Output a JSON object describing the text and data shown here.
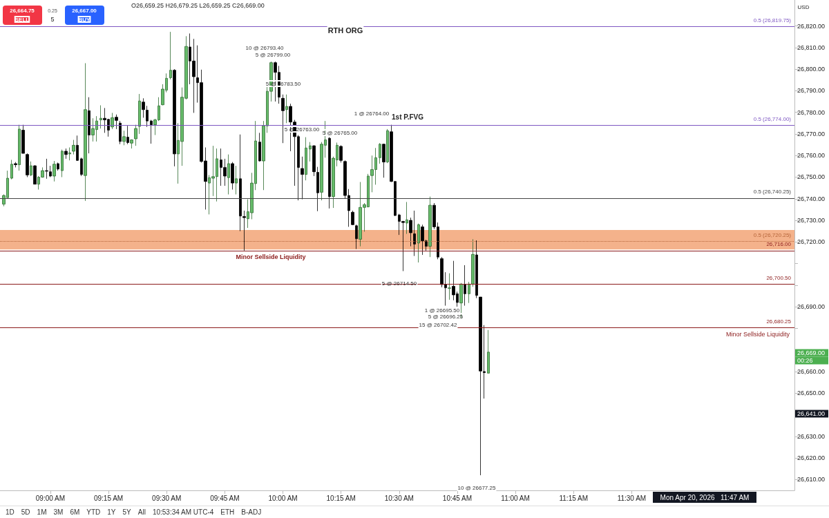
{
  "chart_data": {
    "type": "candlestick",
    "subtitle": "O26,659.25 H26,679.25 L26,659.25 C26,669.00",
    "x": [
      "2026-04-20T08:48",
      "2026-04-20T08:49",
      "2026-04-20T08:50",
      "2026-04-20T08:51",
      "2026-04-20T08:52",
      "2026-04-20T08:53",
      "2026-04-20T08:54",
      "2026-04-20T08:55",
      "2026-04-20T08:56",
      "2026-04-20T08:57",
      "2026-04-20T08:58",
      "2026-04-20T08:59",
      "2026-04-20T09:00",
      "2026-04-20T09:01",
      "2026-04-20T09:02",
      "2026-04-20T09:03",
      "2026-04-20T09:04",
      "2026-04-20T09:05",
      "2026-04-20T09:06",
      "2026-04-20T09:07",
      "2026-04-20T09:08",
      "2026-04-20T09:09",
      "2026-04-20T09:10",
      "2026-04-20T09:11",
      "2026-04-20T09:12",
      "2026-04-20T09:13",
      "2026-04-20T09:14",
      "2026-04-20T09:15",
      "2026-04-20T09:16",
      "2026-04-20T09:17",
      "2026-04-20T09:18",
      "2026-04-20T09:19",
      "2026-04-20T09:20",
      "2026-04-20T09:21",
      "2026-04-20T09:22",
      "2026-04-20T09:23",
      "2026-04-20T09:24",
      "2026-04-20T09:25",
      "2026-04-20T09:26",
      "2026-04-20T09:27",
      "2026-04-20T09:28",
      "2026-04-20T09:29",
      "2026-04-20T09:30",
      "2026-04-20T09:31",
      "2026-04-20T09:32",
      "2026-04-20T09:33",
      "2026-04-20T09:34",
      "2026-04-20T09:35",
      "2026-04-20T09:36",
      "2026-04-20T09:37",
      "2026-04-20T09:38",
      "2026-04-20T09:39",
      "2026-04-20T09:40",
      "2026-04-20T09:41",
      "2026-04-20T09:42",
      "2026-04-20T09:43",
      "2026-04-20T09:44",
      "2026-04-20T09:45",
      "2026-04-20T09:46",
      "2026-04-20T09:47",
      "2026-04-20T09:48",
      "2026-04-20T09:49",
      "2026-04-20T09:50",
      "2026-04-20T09:51",
      "2026-04-20T09:52",
      "2026-04-20T09:53",
      "2026-04-20T09:54",
      "2026-04-20T09:55",
      "2026-04-20T09:56",
      "2026-04-20T09:57",
      "2026-04-20T09:58",
      "2026-04-20T09:59",
      "2026-04-20T10:00",
      "2026-04-20T10:01",
      "2026-04-20T10:02",
      "2026-04-20T10:03",
      "2026-04-20T10:04",
      "2026-04-20T10:05",
      "2026-04-20T10:06",
      "2026-04-20T10:07",
      "2026-04-20T10:08",
      "2026-04-20T10:09",
      "2026-04-20T10:10",
      "2026-04-20T10:11",
      "2026-04-20T10:12",
      "2026-04-20T10:13",
      "2026-04-20T10:14",
      "2026-04-20T10:15",
      "2026-04-20T10:16",
      "2026-04-20T10:17",
      "2026-04-20T10:18",
      "2026-04-20T10:19",
      "2026-04-20T10:20",
      "2026-04-20T10:21",
      "2026-04-20T10:22",
      "2026-04-20T10:23",
      "2026-04-20T10:24",
      "2026-04-20T10:25",
      "2026-04-20T10:26",
      "2026-04-20T10:27",
      "2026-04-20T10:28",
      "2026-04-20T10:29",
      "2026-04-20T10:30",
      "2026-04-20T10:31",
      "2026-04-20T10:32",
      "2026-04-20T10:33",
      "2026-04-20T10:34",
      "2026-04-20T10:35",
      "2026-04-20T10:36",
      "2026-04-20T10:37",
      "2026-04-20T10:38",
      "2026-04-20T10:39",
      "2026-04-20T10:40",
      "2026-04-20T10:41",
      "2026-04-20T10:42",
      "2026-04-20T10:43",
      "2026-04-20T10:44",
      "2026-04-20T10:45",
      "2026-04-20T10:46",
      "2026-04-20T10:47",
      "2026-04-20T10:48",
      "2026-04-20T10:49",
      "2026-04-20T10:50",
      "2026-04-20T10:51",
      "2026-04-20T10:52",
      "2026-04-20T10:53"
    ],
    "ohlc": [
      [
        26737.5,
        26742,
        26736.5,
        26741.5
      ],
      [
        26740.5,
        26753,
        26740.5,
        26749.5
      ],
      [
        26749.5,
        26758,
        26749,
        26756
      ],
      [
        26756.25,
        26757,
        26754.5,
        26755.75
      ],
      [
        26755.75,
        26774.25,
        26753,
        26772.25
      ],
      [
        26771.75,
        26774.25,
        26761,
        26761
      ],
      [
        26760.5,
        26761,
        26750,
        26751
      ],
      [
        26751,
        26757.25,
        26750.5,
        26755.25
      ],
      [
        26755.25,
        26755.5,
        26746.75,
        26746.75
      ],
      [
        26746.75,
        26750.5,
        26744.25,
        26750
      ],
      [
        26750,
        26754.5,
        26749.75,
        26753
      ],
      [
        26753,
        26758.5,
        26749.25,
        26752.75
      ],
      [
        26752.5,
        26755.25,
        26750,
        26750.5
      ],
      [
        26750.5,
        26757.5,
        26748,
        26756
      ],
      [
        26756.25,
        26756.75,
        26753,
        26753.75
      ],
      [
        26753,
        26762.75,
        26750,
        26762
      ],
      [
        26762,
        26763.25,
        26758.5,
        26760.5
      ],
      [
        26760.75,
        26763.75,
        26757.75,
        26761.25
      ],
      [
        26762,
        26767.25,
        26760.5,
        26764.75
      ],
      [
        26764.75,
        26769.25,
        26757.5,
        26757.75
      ],
      [
        26758.5,
        26759,
        26750.5,
        26751.25
      ],
      [
        26750.75,
        26802.75,
        26739,
        26781.25
      ],
      [
        26780.75,
        26787,
        26761,
        26769.5
      ],
      [
        26769.5,
        26777.25,
        26766.5,
        26772.5
      ],
      [
        26772,
        26778.25,
        26766.5,
        26776
      ],
      [
        26776.5,
        26783.25,
        26772.5,
        26777.25
      ],
      [
        26777.25,
        26782,
        26770.5,
        26776.5
      ],
      [
        26776.75,
        26777,
        26768.75,
        26771.75
      ],
      [
        26773.25,
        26779.75,
        26772.25,
        26777.5
      ],
      [
        26777.75,
        26779,
        26772.25,
        26776.25
      ],
      [
        26775,
        26776,
        26765.25,
        26766.5
      ],
      [
        26766.5,
        26771.5,
        26764.75,
        26768.75
      ],
      [
        26768.5,
        26773.75,
        26765.25,
        26766
      ],
      [
        26765.75,
        26767.5,
        26763.25,
        26767.25
      ],
      [
        26767.75,
        26774.25,
        26764.5,
        26772.5
      ],
      [
        26773.5,
        26788.5,
        26770,
        26785.25
      ],
      [
        26784.75,
        26786.5,
        26777.5,
        26781.25
      ],
      [
        26781,
        26783,
        26773.25,
        26776
      ],
      [
        26776,
        26776.5,
        26765.5,
        26774.25
      ],
      [
        26774.25,
        26777,
        26769.5,
        26776.5
      ],
      [
        26776.5,
        26787,
        26776,
        26783
      ],
      [
        26783.5,
        26793,
        26783.25,
        26790.75
      ],
      [
        26790.25,
        26798,
        26789.25,
        26795.75
      ],
      [
        26796,
        26817.25,
        26795.25,
        26799.5
      ],
      [
        26799.5,
        26800,
        26755,
        26760.75
      ],
      [
        26760.75,
        26775,
        26747,
        26767
      ],
      [
        26766.5,
        26791.5,
        26755.25,
        26787
      ],
      [
        26786.5,
        26815.25,
        26786,
        26810.5
      ],
      [
        26810.25,
        26816.5,
        26793,
        26803.75
      ],
      [
        26803.75,
        26814,
        26779.75,
        26796.5
      ],
      [
        26796,
        26811,
        26784.5,
        26793.75
      ],
      [
        26793.75,
        26799.75,
        26756.75,
        26757.25
      ],
      [
        26757.5,
        26763.75,
        26735,
        26748
      ],
      [
        26747.25,
        26751,
        26732.75,
        26749.75
      ],
      [
        26749.5,
        26764.5,
        26741.25,
        26750.25
      ],
      [
        26750.25,
        26763.25,
        26738.75,
        26758.5
      ],
      [
        26758,
        26763.25,
        26746,
        26754.5
      ],
      [
        26754.5,
        26758.5,
        26746,
        26750.5
      ],
      [
        26749.75,
        26760.5,
        26742,
        26756.25
      ],
      [
        26756.25,
        26757,
        26744.25,
        26747.25
      ],
      [
        26747.25,
        26755.25,
        26742,
        26749.25
      ],
      [
        26749.25,
        26769.75,
        26725,
        26732
      ],
      [
        26731.75,
        26734.5,
        26716,
        26731.25
      ],
      [
        26730.75,
        26739.75,
        26726.5,
        26734
      ],
      [
        26733.5,
        26752,
        26730.5,
        26747.25
      ],
      [
        26747,
        26776,
        26744,
        26766.75
      ],
      [
        26766.25,
        26770.5,
        26757.25,
        26757.5
      ],
      [
        26757.5,
        26776,
        26744,
        26773.75
      ],
      [
        26773.75,
        26792.5,
        26770.5,
        26789.75
      ],
      [
        26789.75,
        26803.5,
        26785,
        26803
      ],
      [
        26803,
        26803.5,
        26785,
        26798.5
      ],
      [
        26798.5,
        26801.5,
        26784,
        26787
      ],
      [
        26786.5,
        26788.25,
        26765.75,
        26780.75
      ],
      [
        26781.25,
        26788.25,
        26775,
        26782.75
      ],
      [
        26782.75,
        26784,
        26762,
        26775.5
      ],
      [
        26775.5,
        26776.5,
        26746,
        26768.75
      ],
      [
        26768.75,
        26769.5,
        26739.25,
        26754.5
      ],
      [
        26754,
        26759.5,
        26739.75,
        26751.25
      ],
      [
        26751.25,
        26768.5,
        26748.5,
        26763.5
      ],
      [
        26763,
        26766.25,
        26757.25,
        26764.5
      ],
      [
        26764.5,
        26764.75,
        26750.5,
        26752.5
      ],
      [
        26752.25,
        26754.75,
        26734.25,
        26742.75
      ],
      [
        26743,
        26766.25,
        26739.25,
        26765.25
      ],
      [
        26764.75,
        26776,
        26759,
        26767.25
      ],
      [
        26768,
        26768.5,
        26735.5,
        26741
      ],
      [
        26741,
        26759.5,
        26735.75,
        26758.75
      ],
      [
        26758,
        26766,
        26755,
        26764.75
      ],
      [
        26764.25,
        26764.75,
        26756.75,
        26757.75
      ],
      [
        26757.25,
        26757.75,
        26740,
        26741.5
      ],
      [
        26741.5,
        26744.5,
        26727,
        26734.5
      ],
      [
        26733.75,
        26734.5,
        26727.75,
        26728
      ],
      [
        26727.5,
        26728,
        26716.75,
        26721.5
      ],
      [
        26721.25,
        26747.75,
        26718,
        26736
      ],
      [
        26736,
        26738,
        26724.75,
        26737.25
      ],
      [
        26736.25,
        26751.5,
        26736,
        26750.5
      ],
      [
        26750.75,
        26760,
        26743,
        26753.5
      ],
      [
        26753.5,
        26763.5,
        26746.5,
        26759
      ],
      [
        26759,
        26765.75,
        26756.25,
        26765.25
      ],
      [
        26765.25,
        26765.5,
        26749.75,
        26757
      ],
      [
        26757,
        26772.25,
        26756.5,
        26771.5
      ],
      [
        26771,
        26774.25,
        26747.75,
        26748
      ],
      [
        26748,
        26748.25,
        26732,
        26732.25
      ],
      [
        26732.5,
        26733,
        26723.25,
        26729.5
      ],
      [
        26729.5,
        26729.75,
        26706.5,
        26729
      ],
      [
        26728.75,
        26738.5,
        26723.75,
        26730.25
      ],
      [
        26730,
        26731.25,
        26718,
        26724.25
      ],
      [
        26723.75,
        26734.5,
        26713.5,
        26719
      ],
      [
        26719.5,
        26728.5,
        26710.5,
        26728
      ],
      [
        26727,
        26728,
        26714,
        26720.5
      ],
      [
        26720.5,
        26721,
        26716,
        26718
      ],
      [
        26718,
        26741,
        26713,
        26737
      ],
      [
        26737,
        26738,
        26726,
        26727
      ],
      [
        26727,
        26729,
        26712,
        26713
      ],
      [
        26712.25,
        26713,
        26699,
        26700.25
      ],
      [
        26700.25,
        26706,
        26690.5,
        26698.75
      ],
      [
        26698.5,
        26705.5,
        26693.25,
        26698.75
      ],
      [
        26699.5,
        26711.25,
        26693,
        26695.5
      ],
      [
        26696,
        26697,
        26689.5,
        26692
      ],
      [
        26691.75,
        26701,
        26684.25,
        26700.5
      ],
      [
        26700.25,
        26709.25,
        26690.5,
        26696
      ],
      [
        26696,
        26701.5,
        26691.75,
        26700.5
      ],
      [
        26700.5,
        26721.25,
        26699.25,
        26714.25
      ],
      [
        26714,
        26720.75,
        26694,
        26695.25
      ],
      [
        26694.5,
        26694.5,
        26612,
        26660.25
      ],
      [
        26660,
        26681.5,
        26647.5,
        26659.5
      ],
      [
        26659.25,
        26679.25,
        26659.25,
        26669
      ]
    ],
    "colors": [
      "#66bb6a",
      "#66bb6a",
      "#66bb6a",
      "#000000",
      "#66bb6a",
      "#000000",
      "#000000",
      "#66bb6a",
      "#000000",
      "#66bb6a",
      "#66bb6a",
      "#000000",
      "#000000",
      "#66bb6a",
      "#000000",
      "#66bb6a",
      "#000000",
      "#66bb6a",
      "#66bb6a",
      "#000000",
      "#000000",
      "#66bb6a",
      "#000000",
      "#66bb6a",
      "#66bb6a",
      "#66bb6a",
      "#000000",
      "#000000",
      "#66bb6a",
      "#000000",
      "#000000",
      "#66bb6a",
      "#000000",
      "#66bb6a",
      "#66bb6a",
      "#66bb6a",
      "#000000",
      "#000000",
      "#000000",
      "#66bb6a",
      "#66bb6a",
      "#66bb6a",
      "#66bb6a",
      "#66bb6a",
      "#000000",
      "#66bb6a",
      "#66bb6a",
      "#66bb6a",
      "#000000",
      "#000000",
      "#000000",
      "#000000",
      "#000000",
      "#66bb6a",
      "#66bb6a",
      "#66bb6a",
      "#000000",
      "#000000",
      "#66bb6a",
      "#000000",
      "#66bb6a",
      "#000000",
      "#000000",
      "#66bb6a",
      "#66bb6a",
      "#66bb6a",
      "#000000",
      "#66bb6a",
      "#66bb6a",
      "#66bb6a",
      "#000000",
      "#000000",
      "#000000",
      "#66bb6a",
      "#000000",
      "#000000",
      "#000000",
      "#000000",
      "#66bb6a",
      "#66bb6a",
      "#000000",
      "#000000",
      "#66bb6a",
      "#66bb6a",
      "#000000",
      "#66bb6a",
      "#66bb6a",
      "#000000",
      "#000000",
      "#000000",
      "#000000",
      "#000000",
      "#66bb6a",
      "#66bb6a",
      "#66bb6a",
      "#66bb6a",
      "#66bb6a",
      "#66bb6a",
      "#000000",
      "#66bb6a",
      "#000000",
      "#000000",
      "#000000",
      "#000000",
      "#66bb6a",
      "#000000",
      "#000000",
      "#66bb6a",
      "#000000",
      "#000000",
      "#66bb6a",
      "#000000",
      "#000000",
      "#000000",
      "#000000",
      "#66bb6a",
      "#000000",
      "#000000",
      "#66bb6a",
      "#000000",
      "#66bb6a",
      "#66bb6a",
      "#000000",
      "#000000",
      "#000000",
      "#66bb6a"
    ],
    "xlim": [
      "2026-04-20T08:47",
      "2026-04-20T12:12"
    ],
    "xticks": [
      {
        "value": "2026-04-20T09:00",
        "label": "09:00 AM"
      },
      {
        "value": "2026-04-20T09:15",
        "label": "09:15 AM"
      },
      {
        "value": "2026-04-20T09:30",
        "label": "09:30 AM"
      },
      {
        "value": "2026-04-20T09:45",
        "label": "09:45 AM"
      },
      {
        "value": "2026-04-20T10:00",
        "label": "10:00 AM"
      },
      {
        "value": "2026-04-20T10:15",
        "label": "10:15 AM"
      },
      {
        "value": "2026-04-20T10:30",
        "label": "10:30 AM"
      },
      {
        "value": "2026-04-20T10:45",
        "label": "10:45 AM"
      },
      {
        "value": "2026-04-20T11:00",
        "label": "11:00 AM"
      },
      {
        "value": "2026-04-20T11:15",
        "label": "11:15 AM"
      },
      {
        "value": "2026-04-20T11:30",
        "label": "11:30 AM"
      }
    ],
    "ylim": [
      26605,
      26832
    ],
    "yticks": [
      {
        "value": 26610,
        "label": "26,610.00"
      },
      {
        "value": 26620,
        "label": "26,620.00"
      },
      {
        "value": 26630,
        "label": "26,630.00"
      },
      {
        "value": 26640,
        "label": null
      },
      {
        "value": 26650,
        "label": "26,650.00"
      },
      {
        "value": 26660,
        "label": "26,660.00"
      },
      {
        "value": 26670,
        "label": null
      },
      {
        "value": 26680,
        "label": null
      },
      {
        "value": 26690,
        "label": "26,690.00"
      },
      {
        "value": 26700,
        "label": null
      },
      {
        "value": 26710,
        "label": null
      },
      {
        "value": 26720,
        "label": "26,720.00"
      },
      {
        "value": 26730,
        "label": "26,730.00"
      },
      {
        "value": 26740,
        "label": "26,740.00"
      },
      {
        "value": 26750,
        "label": "26,750.00"
      },
      {
        "value": 26760,
        "label": "26,760.00"
      },
      {
        "value": 26770,
        "label": "26,770.00"
      },
      {
        "value": 26780,
        "label": "26,780.00"
      },
      {
        "value": 26790,
        "label": "26,790.00"
      },
      {
        "value": 26800,
        "label": "26,800.00"
      },
      {
        "value": 26810,
        "label": "26,810.00"
      },
      {
        "value": 26820,
        "label": "26,820.00"
      }
    ],
    "ref_lines": [
      {
        "axis": "y",
        "value": 26819.75,
        "label": "0.5 (26,819.75)",
        "color": "#7e57c2"
      },
      {
        "axis": "y",
        "value": 26774,
        "label": "0.5 (26,774.00)",
        "color": "#7e57c2"
      },
      {
        "axis": "y",
        "value": 26740.25,
        "label": "0.5 (26,740.25)",
        "color": "#444444"
      },
      {
        "axis": "y",
        "value": 26720.25,
        "label": "0.5 (26,720.25)",
        "color": "#b5653a",
        "line_style": "dotted"
      },
      {
        "axis": "y",
        "value": 26716,
        "label": "26,716.00",
        "color": "#8b1a1a"
      },
      {
        "axis": "y",
        "value": 26700.5,
        "label": "26,700.50",
        "color": "#8b1a1a"
      },
      {
        "axis": "y",
        "value": 26680.25,
        "label": "26,680.25",
        "color": "#8b1a1a"
      }
    ],
    "bands": [
      {
        "axis": "y",
        "from": 26716.5,
        "to": 26725.5,
        "color": "#f2a477"
      }
    ],
    "annotations": [
      "RTH ORG",
      "10 @ 26793.40",
      "5 @ 26799.00",
      "5 @ 26783.50",
      "5 @ 26763.00",
      "5 @ 26765.00",
      "1 @ 26764.00",
      "1st P.FVG",
      "Minor Sellside Liquidity",
      "5 @ 26714.50",
      "1 @ 26695.50",
      "5 @ 26696.25",
      "15 @ 26702.42",
      "Minor Sellside Liquidity",
      "10 @ 26677.25",
      "26,669.00",
      "00:26",
      "26,641.00",
      "Mon Apr 20, 2026   11:47 AM",
      "26,664.75",
      "SELL",
      "0.25",
      "5",
      "26,667.00",
      "BUY",
      "USD",
      "1D",
      "5D",
      "1M",
      "3M",
      "6M",
      "YTD",
      "1Y",
      "5Y",
      "All",
      "10:53:34 AM UTC-4",
      "ETH",
      "B-ADJ"
    ]
  }
}
